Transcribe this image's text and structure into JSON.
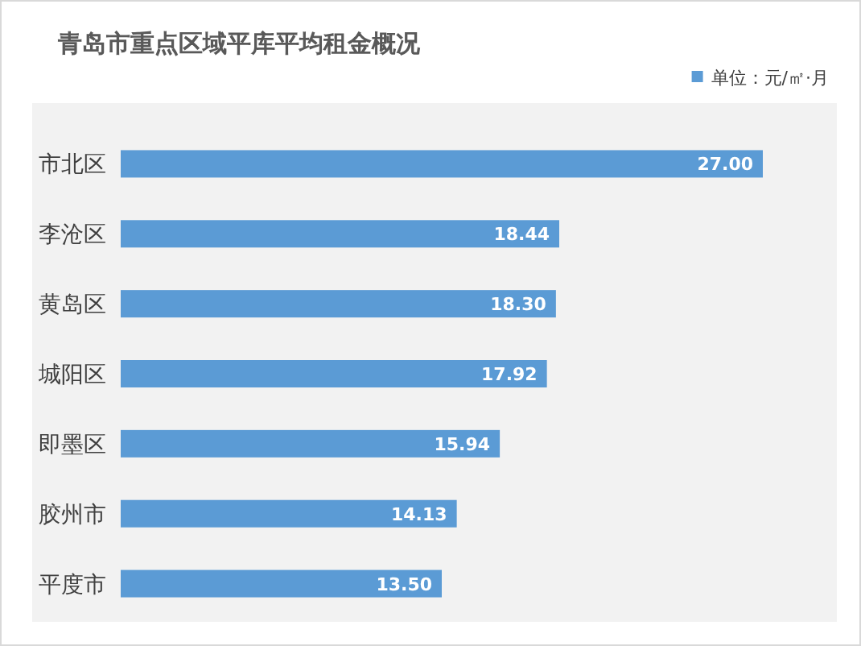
{
  "chart_data": {
    "type": "bar",
    "orientation": "horizontal",
    "title": "青岛市重点区域平库平均租金概况",
    "legend": "top right",
    "categories": [
      "市北区",
      "李沧区",
      "黄岛区",
      "城阳区",
      "即墨区",
      "胶州市",
      "平度市"
    ],
    "series": [
      {
        "name": "单位：元/㎡·月",
        "color": "#5b9bd5",
        "values": [
          27.0,
          18.44,
          18.3,
          17.92,
          15.94,
          14.13,
          13.5
        ],
        "value_labels": [
          "27.00",
          "18.44",
          "18.30",
          "17.92",
          "15.94",
          "14.13",
          "13.50"
        ]
      }
    ]
  }
}
